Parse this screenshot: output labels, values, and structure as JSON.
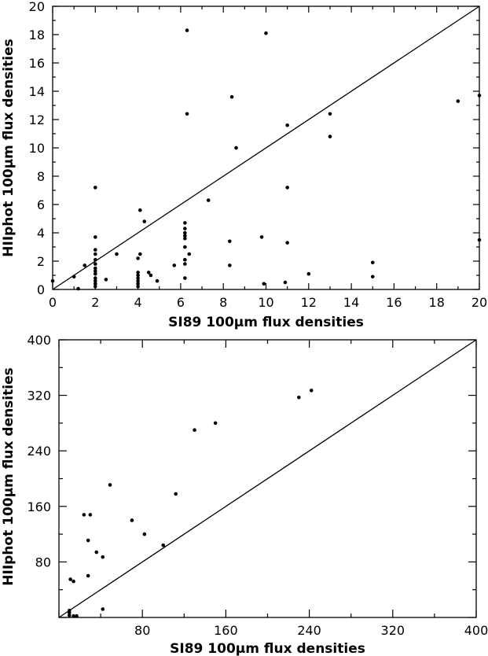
{
  "chart_data": [
    {
      "type": "scatter",
      "xlabel": "SI89  100μm  flux  densities",
      "ylabel": "HIIphot  100μm  flux  densities",
      "xlim": [
        0,
        20
      ],
      "ylim": [
        0,
        20
      ],
      "x_ticks": [
        "0",
        "2",
        "4",
        "6",
        "8",
        "10",
        "12",
        "14",
        "16",
        "18",
        "20"
      ],
      "y_ticks": [
        "0",
        "2",
        "4",
        "6",
        "8",
        "10",
        "12",
        "14",
        "16",
        "18",
        "20"
      ],
      "reference_line": "y = x",
      "points": [
        [
          0.0,
          0.6
        ],
        [
          1.0,
          0.9
        ],
        [
          1.2,
          0.05
        ],
        [
          1.5,
          1.7
        ],
        [
          2.0,
          0.2
        ],
        [
          2.0,
          0.4
        ],
        [
          2.0,
          0.6
        ],
        [
          2.0,
          0.8
        ],
        [
          2.0,
          1.1
        ],
        [
          2.0,
          1.3
        ],
        [
          2.0,
          1.5
        ],
        [
          2.0,
          1.8
        ],
        [
          2.0,
          2.1
        ],
        [
          2.0,
          2.5
        ],
        [
          2.0,
          2.8
        ],
        [
          2.0,
          3.7
        ],
        [
          2.0,
          7.2
        ],
        [
          2.5,
          0.7
        ],
        [
          3.0,
          2.5
        ],
        [
          4.0,
          0.2
        ],
        [
          4.0,
          0.4
        ],
        [
          4.0,
          0.6
        ],
        [
          4.0,
          0.8
        ],
        [
          4.0,
          1.0
        ],
        [
          4.0,
          1.2
        ],
        [
          4.0,
          2.2
        ],
        [
          4.1,
          2.5
        ],
        [
          4.1,
          5.6
        ],
        [
          4.3,
          4.8
        ],
        [
          4.5,
          1.2
        ],
        [
          4.6,
          1.0
        ],
        [
          4.9,
          0.6
        ],
        [
          5.7,
          1.7
        ],
        [
          6.2,
          0.8
        ],
        [
          6.2,
          1.8
        ],
        [
          6.2,
          2.1
        ],
        [
          6.2,
          3.0
        ],
        [
          6.2,
          3.6
        ],
        [
          6.2,
          3.8
        ],
        [
          6.2,
          4.0
        ],
        [
          6.2,
          4.3
        ],
        [
          6.2,
          4.7
        ],
        [
          6.3,
          12.4
        ],
        [
          6.3,
          18.3
        ],
        [
          6.4,
          2.5
        ],
        [
          7.3,
          6.3
        ],
        [
          8.3,
          1.7
        ],
        [
          8.3,
          3.4
        ],
        [
          8.4,
          13.6
        ],
        [
          8.6,
          10.0
        ],
        [
          9.8,
          3.7
        ],
        [
          9.9,
          0.4
        ],
        [
          10.0,
          18.1
        ],
        [
          10.9,
          0.5
        ],
        [
          11.0,
          3.3
        ],
        [
          11.0,
          7.2
        ],
        [
          11.0,
          11.6
        ],
        [
          12.0,
          1.1
        ],
        [
          13.0,
          10.8
        ],
        [
          13.0,
          12.4
        ],
        [
          15.0,
          0.9
        ],
        [
          15.0,
          1.9
        ],
        [
          19.0,
          13.3
        ],
        [
          20.0,
          13.7
        ],
        [
          20.0,
          3.5
        ]
      ]
    },
    {
      "type": "scatter",
      "xlabel": "SI89  100μm  flux  densities",
      "ylabel": "HIIphot  100μm  flux  densities",
      "xlim": [
        0,
        400
      ],
      "ylim": [
        0,
        400
      ],
      "x_ticks": [
        "80",
        "160",
        "240",
        "320",
        "400"
      ],
      "y_ticks": [
        "80",
        "160",
        "240",
        "320",
        "400"
      ],
      "reference_line": "y = x",
      "points": [
        [
          10,
          3
        ],
        [
          10,
          7
        ],
        [
          10,
          10
        ],
        [
          14,
          2
        ],
        [
          14,
          52
        ],
        [
          17,
          2
        ],
        [
          11,
          55
        ],
        [
          28,
          60
        ],
        [
          24,
          148
        ],
        [
          30,
          148
        ],
        [
          28,
          111
        ],
        [
          36,
          94
        ],
        [
          42,
          87
        ],
        [
          42,
          12
        ],
        [
          49,
          191
        ],
        [
          70,
          140
        ],
        [
          82,
          120
        ],
        [
          100,
          104
        ],
        [
          130,
          270
        ],
        [
          150,
          280
        ],
        [
          230,
          317
        ],
        [
          242,
          327
        ],
        [
          112,
          178
        ]
      ]
    }
  ]
}
